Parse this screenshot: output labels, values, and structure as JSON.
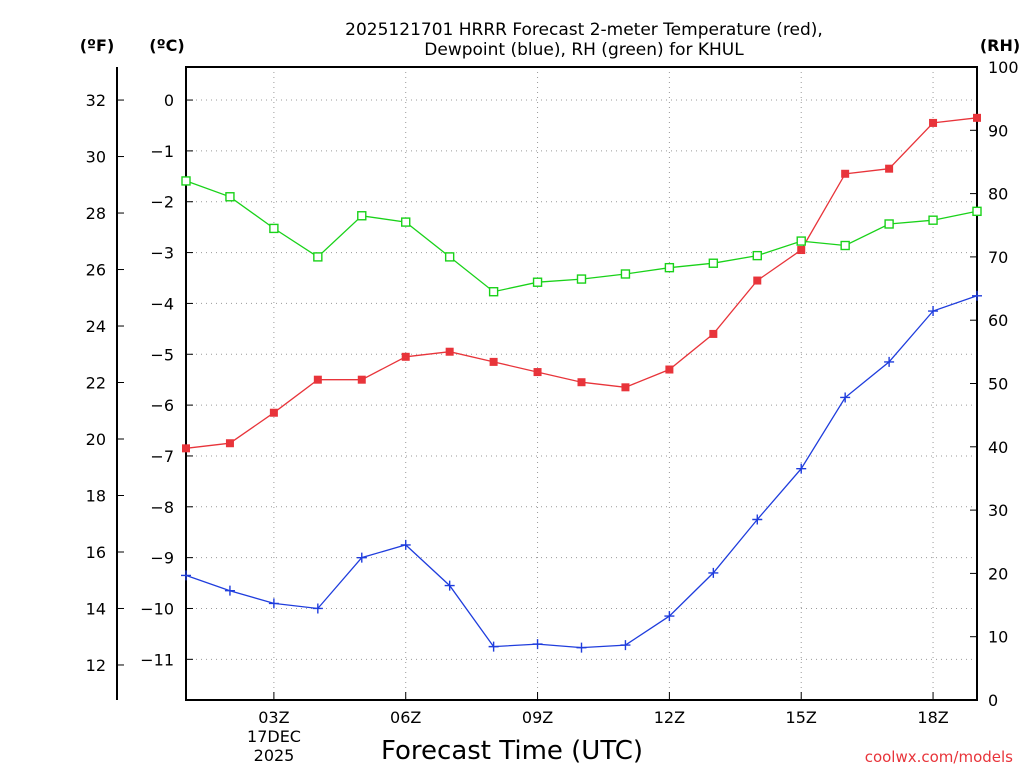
{
  "chart_data": {
    "type": "line",
    "title_line1": "2025121701 HRRR Forecast 2-meter Temperature (red),",
    "title_line2": "Dewpoint (blue), RH (green) for KHUL",
    "xlabel": "Forecast Time (UTC)",
    "credit": "coolwx.com/models",
    "date_day": "17DEC",
    "date_year": "2025",
    "x": [
      1,
      2,
      3,
      4,
      5,
      6,
      7,
      8,
      9,
      10,
      11,
      12,
      13,
      14,
      15,
      16,
      17,
      18,
      19
    ],
    "x_range": [
      1,
      19
    ],
    "x_ticks": [
      {
        "value": 3,
        "label": "03Z"
      },
      {
        "value": 6,
        "label": "06Z"
      },
      {
        "value": 9,
        "label": "09Z"
      },
      {
        "value": 12,
        "label": "12Z"
      },
      {
        "value": 15,
        "label": "15Z"
      },
      {
        "value": 18,
        "label": "18Z"
      }
    ],
    "axes": {
      "fahrenheit": {
        "unit": "(ºF)",
        "ticks": [
          "12",
          "14",
          "16",
          "18",
          "20",
          "22",
          "24",
          "26",
          "28",
          "30",
          "32"
        ]
      },
      "celsius": {
        "unit": "(ºC)",
        "range": [
          -11.8,
          0.65
        ],
        "ticks": [
          "0",
          "−1",
          "−2",
          "−3",
          "−4",
          "−5",
          "−6",
          "−7",
          "−8",
          "−9",
          "−10",
          "−11"
        ]
      },
      "rh": {
        "unit": "(RH)",
        "range": [
          0,
          100
        ],
        "ticks": [
          "0",
          "10",
          "20",
          "30",
          "40",
          "50",
          "60",
          "70",
          "80",
          "90",
          "100"
        ]
      }
    },
    "series": [
      {
        "name": "Temperature",
        "axis": "celsius",
        "color": "#e8343a",
        "marker": "filled-square",
        "values": [
          -6.85,
          -6.75,
          -6.15,
          -5.5,
          -5.5,
          -5.05,
          -4.95,
          -5.15,
          -5.35,
          -5.55,
          -5.65,
          -5.3,
          -4.6,
          -3.55,
          -2.95,
          -1.45,
          -1.35,
          -0.45,
          -0.35
        ]
      },
      {
        "name": "Dewpoint",
        "axis": "celsius",
        "color": "#1f3ddd",
        "marker": "plus",
        "values": [
          -9.35,
          -9.65,
          -9.9,
          -10.0,
          -9.0,
          -8.75,
          -9.55,
          -10.75,
          -10.7,
          -10.77,
          -10.72,
          -10.15,
          -9.3,
          -8.25,
          -7.25,
          -5.85,
          -5.15,
          -4.15,
          -3.85
        ]
      },
      {
        "name": "RH",
        "axis": "rh",
        "color": "#19d219",
        "marker": "open-square",
        "values": [
          82,
          79.5,
          74.5,
          70,
          76.5,
          75.5,
          70,
          64.5,
          66,
          66.5,
          67.3,
          68.3,
          69,
          70.2,
          72.5,
          71.8,
          75.2,
          75.8,
          77.2
        ]
      }
    ]
  }
}
